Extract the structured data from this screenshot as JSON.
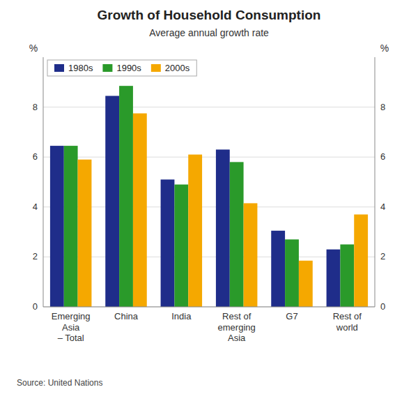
{
  "chart_data": {
    "type": "bar",
    "title": "Growth of Household Consumption",
    "subtitle": "Average annual growth rate",
    "source": "Source: United Nations",
    "ylabel": "%",
    "y2label": "%",
    "categories": [
      "Emerging\nAsia\n– Total",
      "China",
      "India",
      "Rest of\nemerging\nAsia",
      "G7",
      "Rest of\nworld"
    ],
    "series": [
      {
        "name": "1980s",
        "color": "#1f2d8a",
        "values": [
          6.45,
          8.45,
          5.1,
          6.3,
          3.05,
          2.3
        ]
      },
      {
        "name": "1990s",
        "color": "#2a9a2a",
        "values": [
          6.45,
          8.85,
          4.9,
          5.8,
          2.7,
          2.5
        ]
      },
      {
        "name": "2000s",
        "color": "#f5a800",
        "values": [
          5.9,
          7.75,
          6.1,
          4.15,
          1.85,
          3.7
        ]
      }
    ],
    "ylim": [
      0,
      10
    ],
    "yticks": [
      0,
      2,
      4,
      6,
      8
    ],
    "y2lim": [
      0,
      10
    ],
    "y2ticks": [
      0,
      2,
      4,
      6,
      8
    ],
    "grid": true,
    "legend": "upper left"
  }
}
